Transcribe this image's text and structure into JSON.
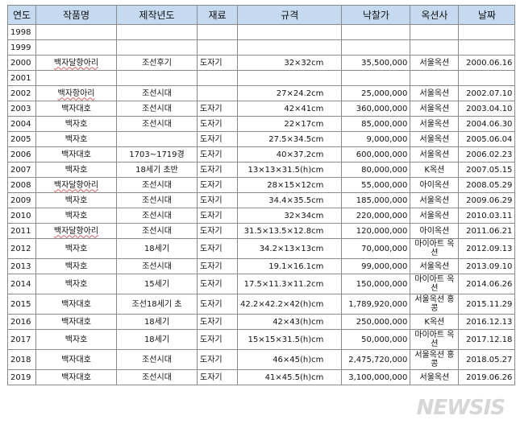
{
  "headers": [
    "연도",
    "작품명",
    "제작년도",
    "재료",
    "규격",
    "낙찰가",
    "옥션사",
    "날짜"
  ],
  "rows": [
    [
      "1998",
      "",
      "",
      "",
      "",
      "",
      "",
      ""
    ],
    [
      "1999",
      "",
      "",
      "",
      "",
      "",
      "",
      ""
    ],
    [
      "2000",
      "백자달항아리",
      "조선후기",
      "도자기",
      "32×32cm",
      "35,500,000",
      "서울옥션",
      "2000.06.16"
    ],
    [
      "2001",
      "",
      "",
      "",
      "",
      "",
      "",
      ""
    ],
    [
      "2002",
      "백자항아리",
      "조선시대",
      "",
      "27×24.2cm",
      "25,000,000",
      "서울옥션",
      "2002.07.10"
    ],
    [
      "2003",
      "백자대호",
      "조선시대",
      "도자기",
      "42×41cm",
      "360,000,000",
      "서울옥션",
      "2003.04.10"
    ],
    [
      "2004",
      "백자호",
      "조선시대",
      "도자기",
      "22×17cm",
      "85,000,000",
      "서울옥션",
      "2004.06.30"
    ],
    [
      "2005",
      "백자호",
      "",
      "도자기",
      "27.5×34.5cm",
      "9,000,000",
      "서울옥션",
      "2005.06.04"
    ],
    [
      "2006",
      "백자대호",
      "1703~1719경",
      "도자기",
      "40×37.2cm",
      "600,000,000",
      "서울옥션",
      "2006.02.23"
    ],
    [
      "2007",
      "백자호",
      "18세기 초반",
      "도자기",
      "13×13×31.5(h)cm",
      "80,000,000",
      "K옥션",
      "2007.05.15"
    ],
    [
      "2008",
      "백자달항아리",
      "조선시대",
      "도자기",
      "28×15×12cm",
      "55,000,000",
      "아이옥션",
      "2008.05.29"
    ],
    [
      "2009",
      "백자호",
      "조선시대",
      "도자기",
      "34.4×35.5cm",
      "185,000,000",
      "서울옥션",
      "2009.06.29"
    ],
    [
      "2010",
      "백자호",
      "조선시대",
      "도자기",
      "32×34cm",
      "220,000,000",
      "서울옥션",
      "2010.03.11"
    ],
    [
      "2011",
      "백자달항아리",
      "조선시대",
      "도자기",
      "31.5×13.5×12.8cm",
      "120,000,000",
      "아이옥션",
      "2011.06.21"
    ],
    [
      "2012",
      "백자호",
      "18세기",
      "도자기",
      "34.2×13×13cm",
      "70,000,000",
      "마이아트 옥션",
      "2012.09.13"
    ],
    [
      "2013",
      "백자호",
      "조선시대",
      "도자기",
      "19.1×16.1cm",
      "99,000,000",
      "서울옥션",
      "2013.09.10"
    ],
    [
      "2014",
      "백자호",
      "15세기",
      "도자기",
      "17.5×11.3×11.2cm",
      "150,000,000",
      "마이아트 옥션",
      "2014.06.26"
    ],
    [
      "2015",
      "백자대호",
      "조선18세기 초",
      "도자기",
      "42.2×42.2×42(h)cm",
      "1,789,920,000",
      "서울옥션 홍콩",
      "2015.11.29"
    ],
    [
      "2016",
      "백자대호",
      "18세기",
      "도자기",
      "42×43(h)cm",
      "250,000,000",
      "K옥션",
      "2016.12.13"
    ],
    [
      "2017",
      "백자호",
      "18세기",
      "도자기",
      "15×15×31.5(h)cm",
      "50,000,000",
      "마이아트 옥션",
      "2017.12.18"
    ],
    [
      "2018",
      "백자대호",
      "조선시대",
      "도자기",
      "46×45(h)cm",
      "2,475,720,000",
      "서울옥션 홍콩",
      "2018.05.27"
    ],
    [
      "2019",
      "백자대호",
      "조선시대",
      "도자기",
      "41×45.5(h)cm",
      "3,100,000,000",
      "서울옥션",
      "2019.06.26"
    ]
  ],
  "tall_rows": [
    14,
    16,
    17,
    19,
    20
  ],
  "watermark": "NEWSIS"
}
